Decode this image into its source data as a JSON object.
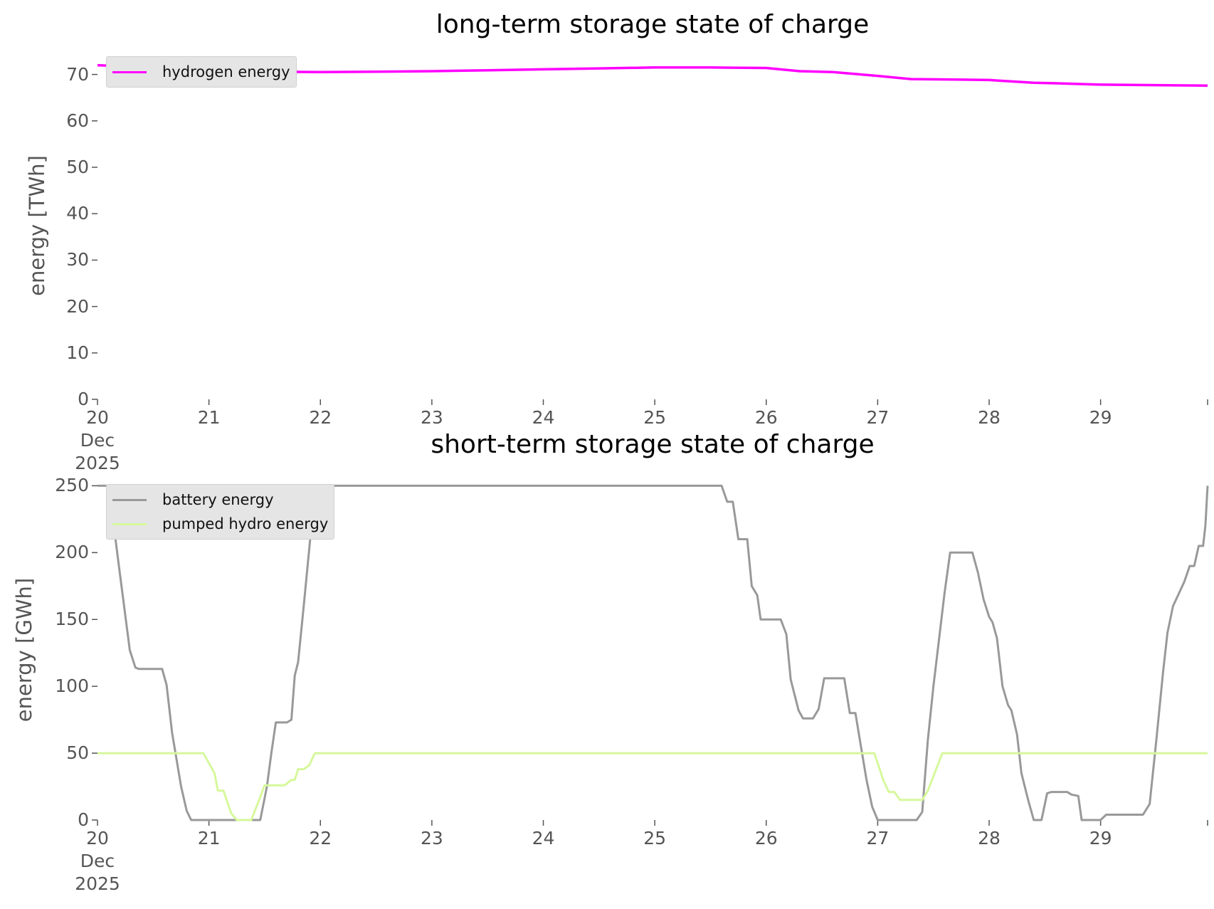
{
  "chart_data": [
    {
      "type": "line",
      "title": "long-term storage state of charge",
      "ylabel": "energy [TWh]",
      "xlim": [
        20,
        29.96
      ],
      "xticks": [
        {
          "value": 20,
          "label": "20\nDec\n2025"
        },
        21,
        22,
        23,
        24,
        25,
        26,
        27,
        28,
        29
      ],
      "ylim": [
        0,
        75
      ],
      "yticks": [
        0,
        10,
        20,
        30,
        40,
        50,
        60,
        70
      ],
      "legend": "upper left",
      "series": [
        {
          "name": "hydrogen energy",
          "color": "#ff00ff",
          "x": [
            20,
            20.5,
            21,
            21.5,
            22,
            22.5,
            23,
            23.5,
            24,
            24.5,
            25,
            25.5,
            26,
            26.3,
            26.6,
            27,
            27.3,
            27.7,
            28,
            28.4,
            28.6,
            29,
            29.5,
            29.96
          ],
          "values": [
            72,
            71.5,
            70.9,
            70.6,
            70.5,
            70.6,
            70.7,
            70.9,
            71.1,
            71.3,
            71.5,
            71.5,
            71.4,
            70.7,
            70.5,
            69.7,
            69.0,
            68.9,
            68.8,
            68.2,
            68.1,
            67.8,
            67.7,
            67.6
          ]
        }
      ]
    },
    {
      "type": "line",
      "title": "short-term storage state of charge",
      "ylabel": "energy [GWh]",
      "xlim": [
        20,
        29.96
      ],
      "xticks": [
        {
          "value": 20,
          "label": "20\nDec\n2025"
        },
        21,
        22,
        23,
        24,
        25,
        26,
        27,
        28,
        29
      ],
      "ylim": [
        0,
        255
      ],
      "yticks": [
        0,
        50,
        100,
        150,
        200,
        250
      ],
      "legend": "upper left",
      "series": [
        {
          "name": "battery energy",
          "color": "#999999",
          "x": [
            20,
            20.1,
            20.2,
            20.29,
            20.34,
            20.37,
            20.58,
            20.62,
            20.67,
            20.75,
            20.8,
            20.84,
            21.46,
            21.52,
            21.56,
            21.6,
            21.7,
            21.74,
            21.77,
            21.8,
            21.85,
            21.92,
            21.97,
            25.6,
            25.65,
            25.7,
            25.75,
            25.83,
            25.87,
            25.92,
            25.95,
            26.13,
            26.18,
            26.22,
            26.29,
            26.33,
            26.42,
            26.47,
            26.52,
            26.7,
            26.75,
            26.8,
            26.84,
            26.9,
            26.95,
            27,
            27.35,
            27.4,
            27.45,
            27.5,
            27.6,
            27.65,
            27.85,
            27.9,
            27.95,
            28,
            28.03,
            28.07,
            28.12,
            28.17,
            28.2,
            28.25,
            28.29,
            28.35,
            28.4,
            28.47,
            28.52,
            28.56,
            28.7,
            28.74,
            28.8,
            28.83,
            29,
            29.05,
            29.38,
            29.44,
            29.5,
            29.56,
            29.6,
            29.65,
            29.75,
            29.8,
            29.84,
            29.88,
            29.92,
            29.94,
            29.96
          ],
          "values": [
            250,
            250,
            185,
            127,
            114,
            113,
            113,
            101,
            65,
            25,
            7,
            0,
            0,
            25,
            50,
            73,
            73,
            75,
            108,
            118,
            160,
            220,
            250,
            250,
            238,
            238,
            210,
            210,
            175,
            168,
            150,
            150,
            139,
            105,
            82,
            76,
            76,
            83,
            106,
            106,
            80,
            80,
            60,
            30,
            10,
            0,
            0,
            6,
            60,
            100,
            170,
            200,
            200,
            185,
            165,
            152,
            148,
            136,
            100,
            86,
            82,
            64,
            35,
            15,
            0,
            0,
            20,
            21,
            21,
            19,
            18,
            0,
            0,
            4,
            4,
            12,
            60,
            110,
            140,
            160,
            178,
            190,
            190,
            205,
            205,
            220,
            250
          ]
        },
        {
          "name": "pumped hydro energy",
          "color": "#d6f89c",
          "x": [
            20,
            20.95,
            21.05,
            21.08,
            21.13,
            21.2,
            21.25,
            21.38,
            21.45,
            21.5,
            21.68,
            21.74,
            21.77,
            21.8,
            21.85,
            21.9,
            21.95,
            26.97,
            27.05,
            27.1,
            27.15,
            27.2,
            27.4,
            27.45,
            27.58,
            29.96
          ],
          "values": [
            50,
            50,
            35,
            22,
            22,
            5,
            0,
            0,
            15,
            26,
            26,
            30,
            30,
            38,
            38,
            41,
            50,
            50,
            30,
            21,
            21,
            15,
            15,
            22,
            50,
            50
          ]
        }
      ]
    }
  ]
}
